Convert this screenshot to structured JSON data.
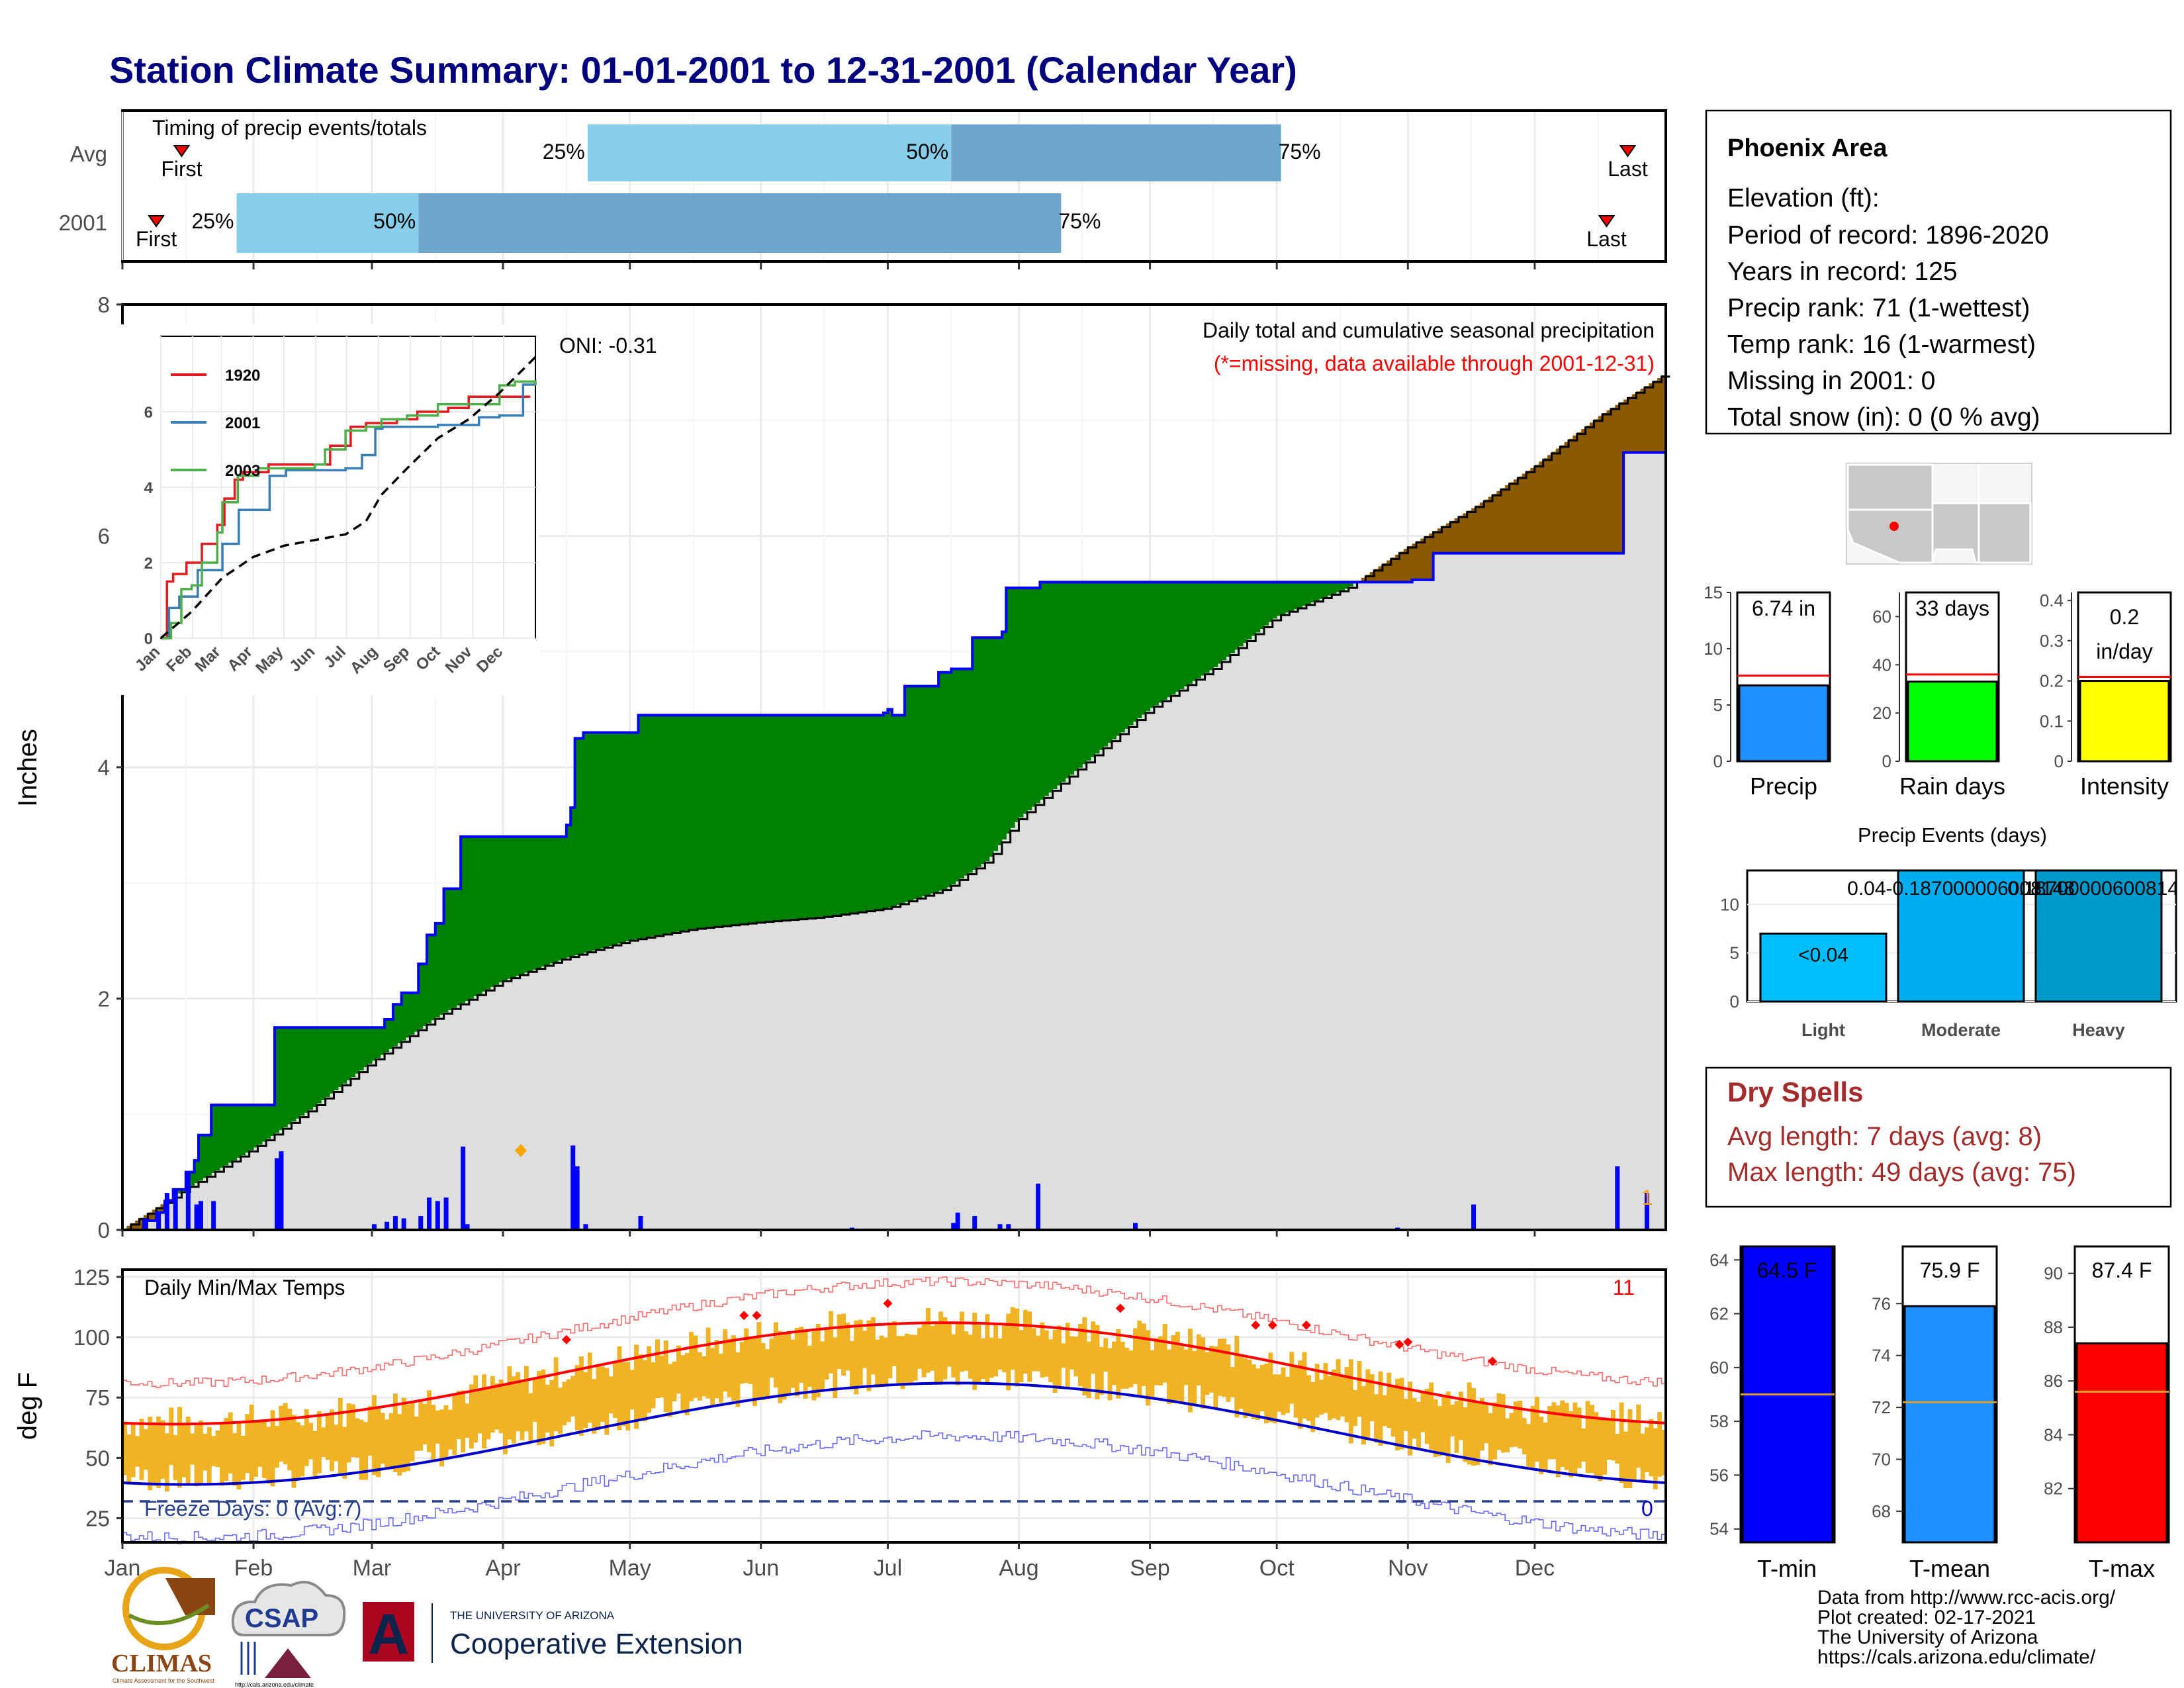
{
  "page_title": "Station Climate Summary: 01-01-2001 to 12-31-2001 (Calendar Year)",
  "timing": {
    "title": "Timing of precip events/totals",
    "rows": [
      "Avg",
      "2001"
    ],
    "avg": {
      "first_day": 14,
      "last_day": 356,
      "q25": 110,
      "q50": 196,
      "q75": 274
    },
    "year": {
      "first_day": 8,
      "last_day": 351,
      "q25": 27,
      "q50": 70,
      "q75": 222
    },
    "labels": {
      "first": "First",
      "last": "Last",
      "q25": "25%",
      "q50": "50%",
      "q75": "75%"
    }
  },
  "station": {
    "name": "Phoenix Area",
    "lines": [
      "Elevation (ft):",
      "Period of record: 1896-2020",
      "Years in record: 125",
      "Precip rank: 71 (1-wettest)",
      "Temp rank: 16 (1-warmest)",
      "Missing in 2001: 0",
      "Total snow (in): 0 (0 % avg)"
    ]
  },
  "main_precip": {
    "ylabel": "Inches",
    "ylim": [
      0,
      8
    ],
    "yticks": [
      0,
      2,
      4,
      6,
      8
    ],
    "header_line1": "Daily total and cumulative seasonal precipitation",
    "header_line2": "(*=missing, data available through 2001-12-31)",
    "oni": "ONI: -0.31",
    "corner_count": "1",
    "colors": {
      "above": "#008000",
      "below": "#8B5A00",
      "normal": "#DEDEDE",
      "obs_line": "#0000FF"
    }
  },
  "inset": {
    "ylim": [
      0,
      8
    ],
    "yticks": [
      0,
      2,
      4,
      6
    ],
    "months": [
      "Jan",
      "Feb",
      "Mar",
      "Apr",
      "May",
      "Jun",
      "Jul",
      "Aug",
      "Sep",
      "Oct",
      "Nov",
      "Dec"
    ],
    "legend": [
      {
        "name": "1920",
        "color": "#E41A1C"
      },
      {
        "name": "2001",
        "color": "#377EB8"
      },
      {
        "name": "2003",
        "color": "#4DAF4A"
      }
    ]
  },
  "temps": {
    "title": "Daily Min/Max Temps",
    "ylabel": "deg F",
    "ylim": [
      15,
      128
    ],
    "yticks": [
      25,
      50,
      75,
      100,
      125
    ],
    "freeze_text": "Freeze Days: 0 (Avg:7)",
    "record_count": "11",
    "freeze_count": "0"
  },
  "months": [
    "Jan",
    "Feb",
    "Mar",
    "Apr",
    "May",
    "Jun",
    "Jul",
    "Aug",
    "Sep",
    "Oct",
    "Nov",
    "Dec"
  ],
  "summary_bars": {
    "precip": {
      "label": "Precip",
      "value": 6.74,
      "text": "6.74 in",
      "avg": 7.6,
      "ylim": [
        0,
        15
      ],
      "yticks": [
        0,
        5,
        10,
        15
      ],
      "color": "#1E90FF"
    },
    "rain_days": {
      "label": "Rain days",
      "value": 33,
      "text": "33 days",
      "avg": 36,
      "ylim": [
        0,
        70
      ],
      "yticks": [
        0,
        20,
        40,
        60
      ],
      "color": "#00FF00"
    },
    "intensity": {
      "label": "Intensity",
      "value": 0.2,
      "text_line1": "0.2",
      "text_line2": "in/day",
      "avg": 0.21,
      "ylim": [
        0,
        0.42
      ],
      "yticks": [
        0.0,
        0.1,
        0.2,
        0.3,
        0.4
      ],
      "color": "#FFFF00"
    }
  },
  "precip_events": {
    "title": "Precip Events (days)",
    "ylim": [
      0,
      13.5
    ],
    "yticks": [
      0,
      5,
      10
    ],
    "categories": [
      "Light",
      "Moderate",
      "Heavy"
    ],
    "values": [
      7,
      13.5,
      13.5
    ],
    "labels": [
      "<0.04",
      "0.04-0.187000006008148",
      "0.187000006008148"
    ],
    "colors": [
      "#00BFFF",
      "#00AEEF",
      "#0099CC"
    ]
  },
  "dry_spells": {
    "title": "Dry Spells",
    "line1": "Avg length: 7 days (avg: 8)",
    "line2": "Max length: 49 days (avg: 75)"
  },
  "temp_bars": {
    "tmin": {
      "label": "T-min",
      "value": 64.5,
      "text": "64.5 F",
      "avg": 59.0,
      "ylim": [
        53.5,
        64.5
      ],
      "yticks": [
        54,
        56,
        58,
        60,
        62,
        64
      ],
      "color": "#0000FF"
    },
    "tmean": {
      "label": "T-mean",
      "value": 75.9,
      "text": "75.9 F",
      "avg": 72.2,
      "ylim": [
        66.8,
        78.2
      ],
      "yticks": [
        68,
        70,
        72,
        74,
        76
      ],
      "color": "#1E90FF"
    },
    "tmax": {
      "label": "T-max",
      "value": 87.4,
      "text": "87.4 F",
      "avg": 85.6,
      "ylim": [
        80.0,
        91.0
      ],
      "yticks": [
        82,
        84,
        86,
        88,
        90
      ],
      "color": "#FF0000"
    }
  },
  "credits": [
    "Data from http://www.rcc-acis.org/",
    "Plot created: 02-17-2021",
    "The University of Arizona",
    "https://cals.arizona.edu/climate/"
  ],
  "logos": {
    "climas": "CLIMAS",
    "climas_sub": "Climate Assessment for the Southwest",
    "csap": "CSAP",
    "csap_url": "http://cals.arizona.edu/climate",
    "ua_small": "THE UNIVERSITY OF ARIZONA",
    "ua_big": "Cooperative Extension",
    "ua_letter": "A"
  }
}
